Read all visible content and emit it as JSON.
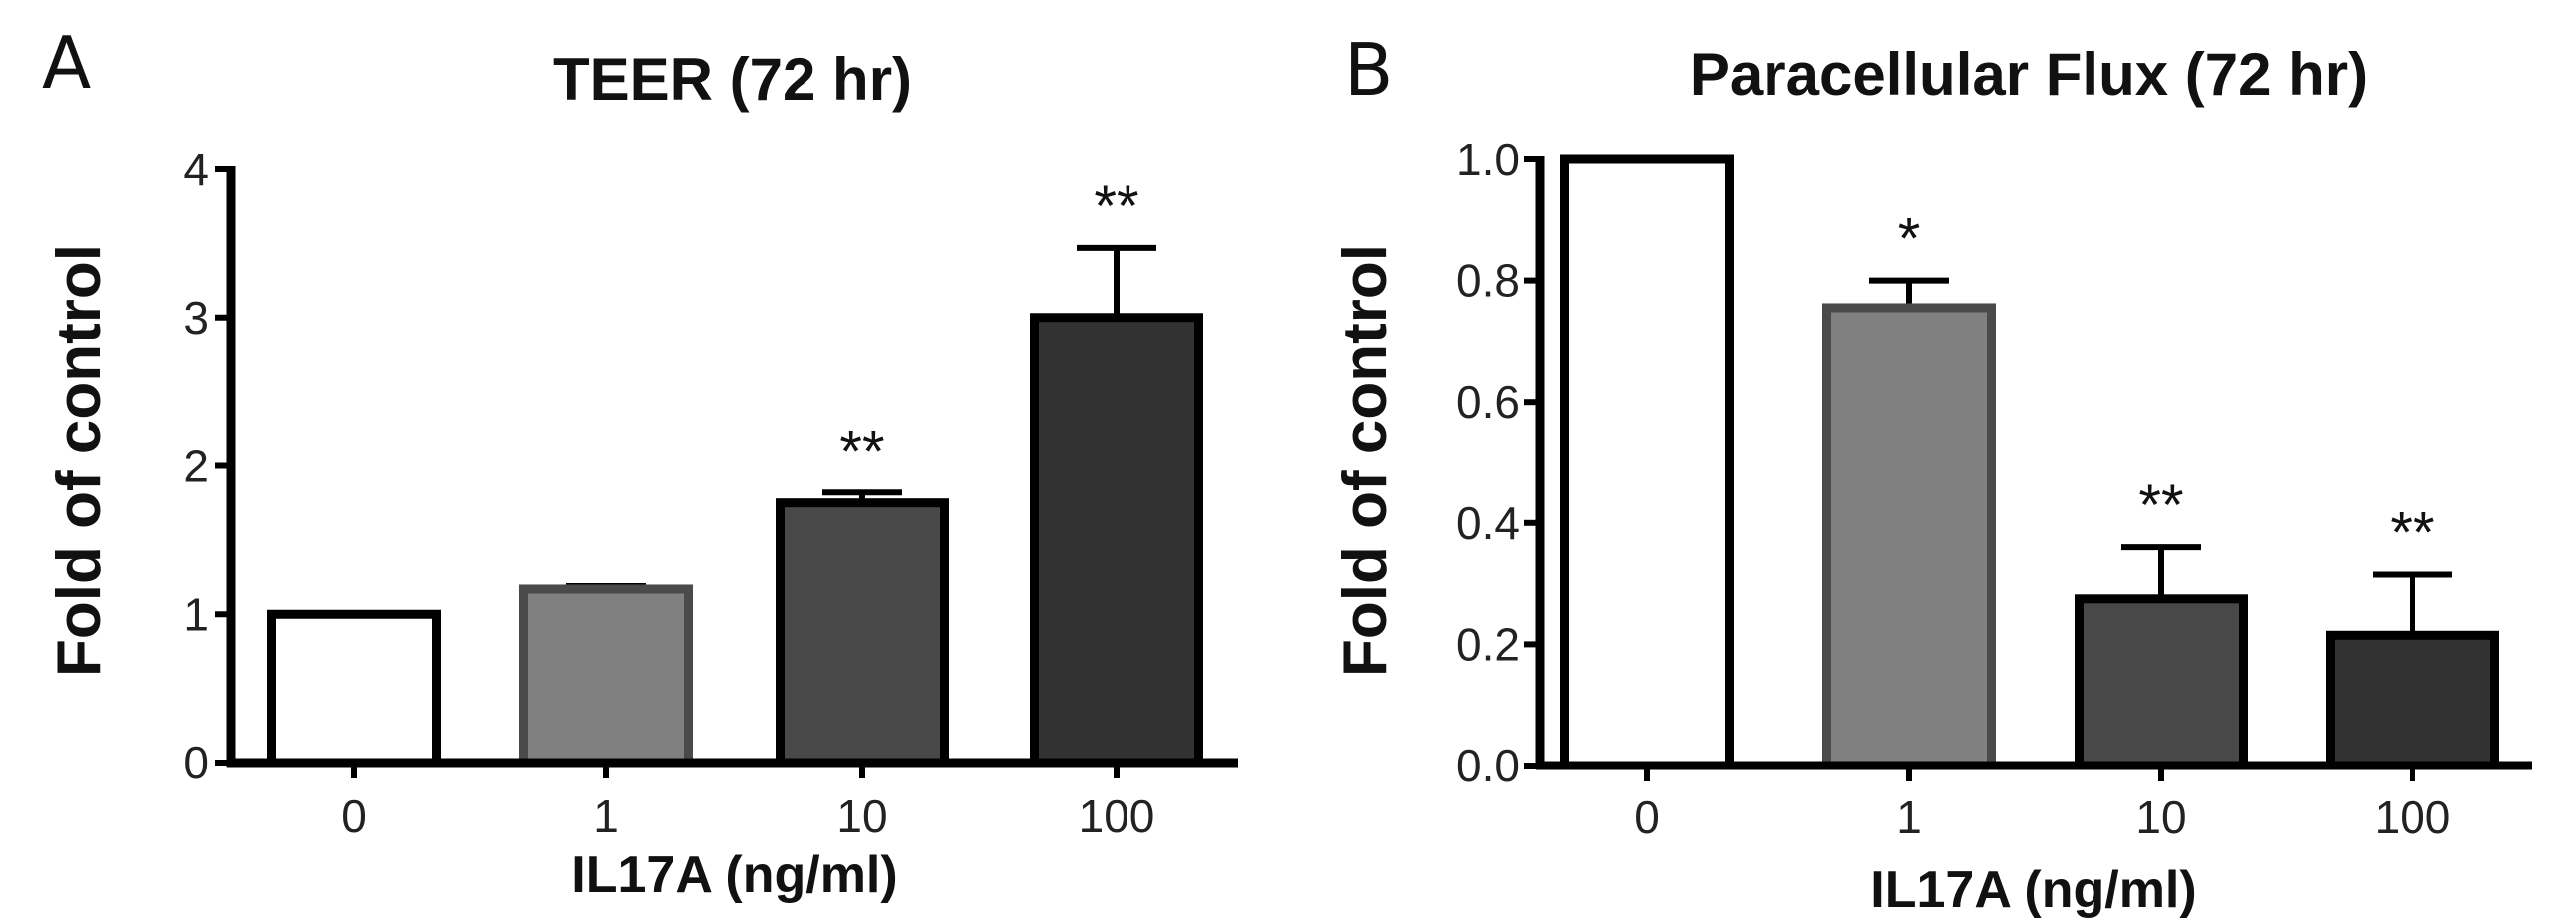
{
  "chart_data": [
    {
      "type": "bar",
      "panel": "A",
      "title": "TEER (72 hr)",
      "xlabel": "IL17A (ng/ml)",
      "ylabel": "Fold of control",
      "categories": [
        "0",
        "1",
        "10",
        "100"
      ],
      "values": [
        1.0,
        1.17,
        1.75,
        3.0
      ],
      "errors": [
        0,
        0.02,
        0.07,
        0.47
      ],
      "significance": [
        "",
        "",
        "**",
        "**"
      ],
      "colors": [
        "#ffffff",
        "#808080",
        "#484848",
        "#323232"
      ],
      "ylim": [
        0,
        4
      ],
      "yticks": [
        "0",
        "1",
        "2",
        "3",
        "4"
      ],
      "ytick_values": [
        0,
        1,
        2,
        3,
        4
      ]
    },
    {
      "type": "bar",
      "panel": "B",
      "title": "Paracellular Flux (72 hr)",
      "xlabel": "IL17A (ng/ml)",
      "ylabel": "Fold of control",
      "categories": [
        "0",
        "1",
        "10",
        "100"
      ],
      "values": [
        1.0,
        0.755,
        0.275,
        0.215
      ],
      "errors": [
        0,
        0.045,
        0.085,
        0.1
      ],
      "significance": [
        "",
        "*",
        "**",
        "**"
      ],
      "colors": [
        "#ffffff",
        "#808080",
        "#484848",
        "#323232"
      ],
      "ylim": [
        0,
        1.0
      ],
      "yticks": [
        "0.0",
        "0.2",
        "0.4",
        "0.6",
        "0.8",
        "1.0"
      ],
      "ytick_values": [
        0,
        0.2,
        0.4,
        0.6,
        0.8,
        1.0
      ]
    }
  ]
}
